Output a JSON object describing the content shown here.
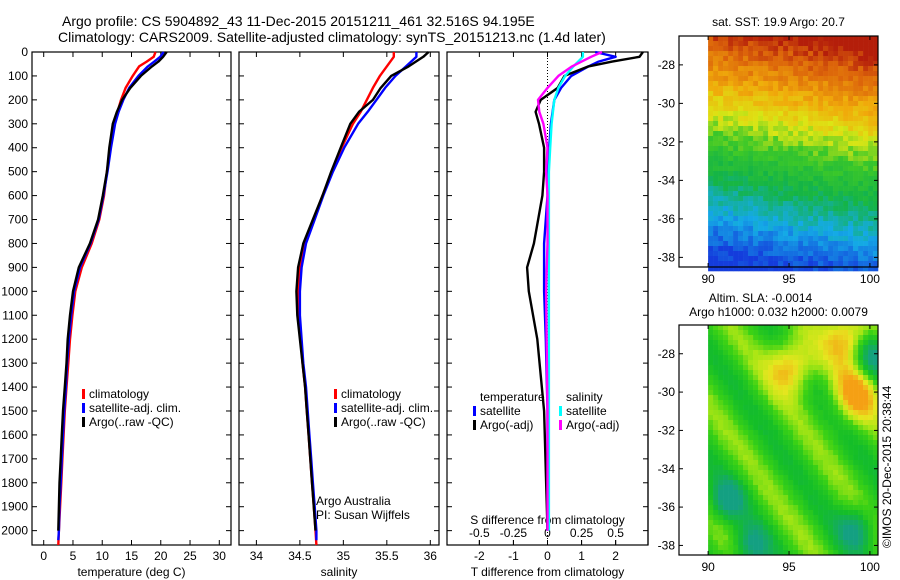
{
  "header": {
    "line1": "Argo profile: CS 5904892_43 11-Dec-2015 20151211_461 32.516S 94.195E",
    "line2": "Climatology: CARS2009. Satellite-adjusted climatology: synTS_20151213.nc (1.4d later)"
  },
  "credit": {
    "institution": "Argo Australia",
    "pi": "PI: Susan Wijffels",
    "stamp": "©IMOS 20-Dec-2015 20:38:44"
  },
  "chart_data": [
    {
      "id": "temperature-profile",
      "type": "line",
      "xlabel": "temperature (deg C)",
      "ylabel": "",
      "xlim": [
        -2,
        32
      ],
      "ylim": [
        2060,
        0
      ],
      "xticks": [
        0,
        5,
        10,
        15,
        20,
        25,
        30
      ],
      "yticks": [
        0,
        100,
        200,
        300,
        400,
        500,
        600,
        700,
        800,
        900,
        1000,
        1100,
        1200,
        1300,
        1400,
        1500,
        1600,
        1700,
        1800,
        1900,
        2000
      ],
      "legend": [
        "climatology",
        "satellite-adj. clim.",
        "Argo(..raw -QC)"
      ],
      "legend_position": "lower-middle",
      "series": [
        {
          "name": "climatology",
          "color": "#ff0000",
          "depth": [
            0,
            20,
            40,
            60,
            100,
            150,
            200,
            250,
            300,
            400,
            500,
            600,
            700,
            800,
            900,
            1000,
            1100,
            1200,
            1300,
            1400,
            1500,
            1600,
            1700,
            1800,
            1900,
            2000,
            2060
          ],
          "values": [
            19.1,
            18.8,
            17.6,
            16.3,
            15.2,
            14.0,
            13.2,
            12.6,
            12.0,
            11.4,
            10.8,
            10.3,
            9.5,
            8.2,
            6.5,
            5.4,
            4.9,
            4.5,
            4.2,
            3.9,
            3.6,
            3.4,
            3.2,
            3.0,
            2.8,
            2.6,
            2.5
          ]
        },
        {
          "name": "satellite-adj. clim.",
          "color": "#0000ff",
          "depth": [
            0,
            20,
            40,
            60,
            100,
            150,
            200,
            250,
            300,
            400,
            500,
            600,
            700,
            800,
            900,
            1000,
            1100,
            1200,
            1300,
            1400,
            1500,
            1600,
            1700,
            1800,
            1900,
            2000,
            2040
          ],
          "values": [
            20.5,
            19.9,
            18.9,
            17.8,
            16.2,
            14.6,
            13.6,
            12.8,
            12.2,
            11.5,
            10.9,
            10.2,
            9.4,
            8.0,
            6.2,
            5.2,
            4.7,
            4.3,
            4.0,
            3.8,
            3.5,
            3.3,
            3.1,
            2.9,
            2.7,
            2.6,
            2.5
          ]
        },
        {
          "name": "Argo(..raw -QC)",
          "color": "#000000",
          "depth": [
            0,
            20,
            40,
            60,
            100,
            150,
            200,
            250,
            300,
            400,
            500,
            600,
            700,
            800,
            900,
            1000,
            1100,
            1200,
            1300,
            1400,
            1500,
            1600,
            1700,
            1800,
            1900,
            2000
          ],
          "values": [
            21.0,
            20.4,
            19.6,
            18.5,
            16.6,
            14.8,
            13.4,
            12.5,
            11.8,
            11.2,
            10.8,
            10.1,
            9.3,
            7.9,
            6.0,
            5.0,
            4.5,
            4.1,
            3.9,
            3.6,
            3.3,
            3.1,
            2.9,
            2.7,
            2.6,
            2.5
          ]
        }
      ]
    },
    {
      "id": "salinity-profile",
      "type": "line",
      "xlabel": "salinity",
      "xlim": [
        33.8,
        36.1
      ],
      "ylim": [
        2060,
        0
      ],
      "xticks": [
        34,
        34.5,
        35,
        35.5,
        36
      ],
      "legend": [
        "climatology",
        "satellite-adj. clim.",
        "Argo(..raw -QC)"
      ],
      "legend_position": "lower-right",
      "series": [
        {
          "name": "climatology",
          "color": "#ff0000",
          "depth": [
            0,
            20,
            60,
            100,
            150,
            200,
            250,
            300,
            400,
            500,
            600,
            700,
            800,
            900,
            1000,
            1100,
            1200,
            1300,
            1400,
            1500,
            1600,
            1700,
            1800,
            1900,
            2000,
            2060
          ],
          "values": [
            35.58,
            35.58,
            35.5,
            35.42,
            35.34,
            35.27,
            35.2,
            35.11,
            34.98,
            34.87,
            34.76,
            34.66,
            34.56,
            34.5,
            34.48,
            34.49,
            34.51,
            34.53,
            34.56,
            34.58,
            34.6,
            34.62,
            34.64,
            34.66,
            34.68,
            34.69
          ]
        },
        {
          "name": "satellite-adj. clim.",
          "color": "#0000ff",
          "depth": [
            0,
            20,
            60,
            100,
            150,
            200,
            250,
            300,
            400,
            500,
            600,
            700,
            800,
            900,
            1000,
            1100,
            1200,
            1300,
            1400,
            1500,
            1600,
            1700,
            1800,
            1900,
            2000,
            2040
          ],
          "values": [
            35.84,
            35.84,
            35.72,
            35.6,
            35.48,
            35.38,
            35.28,
            35.17,
            35.01,
            34.88,
            34.77,
            34.67,
            34.57,
            34.52,
            34.5,
            34.5,
            34.52,
            34.54,
            34.57,
            34.59,
            34.61,
            34.63,
            34.65,
            34.67,
            34.69,
            34.69
          ]
        },
        {
          "name": "Argo(..raw -QC)",
          "color": "#000000",
          "depth": [
            0,
            20,
            60,
            100,
            150,
            200,
            250,
            300,
            400,
            500,
            600,
            700,
            800,
            900,
            1000,
            1100,
            1200,
            1300,
            1400,
            1500,
            1600,
            1700,
            1800,
            1900,
            2000
          ],
          "values": [
            35.98,
            35.92,
            35.75,
            35.55,
            35.43,
            35.34,
            35.18,
            35.08,
            34.97,
            34.86,
            34.76,
            34.65,
            34.54,
            34.48,
            34.46,
            34.47,
            34.5,
            34.53,
            34.56,
            34.58,
            34.6,
            34.62,
            34.64,
            34.66,
            34.68
          ]
        }
      ]
    },
    {
      "id": "difference-profile",
      "type": "line",
      "xlabel": "T difference from climatology",
      "xlabel_secondary": "S difference from climatology",
      "xlim": [
        -2.95,
        2.95
      ],
      "xlim_secondary": [
        -0.7375,
        0.7375
      ],
      "ylim": [
        2060,
        0
      ],
      "xticks": [
        -2,
        -1,
        0,
        1,
        2
      ],
      "xticks_secondary": [
        -0.5,
        -0.25,
        0,
        0.25,
        0.5
      ],
      "legend_groups": [
        {
          "title": "temperature",
          "entries": [
            "satellite",
            "Argo(-adj)"
          ]
        },
        {
          "title": "salinity",
          "entries": [
            "satellite",
            "Argo(-adj)"
          ]
        }
      ],
      "legend_position": "lower-middle",
      "series": [
        {
          "name": "temperature satellite",
          "axis": "T",
          "color": "#0000ff",
          "depth": [
            0,
            20,
            40,
            60,
            100,
            150,
            200,
            300,
            400,
            500,
            600,
            800,
            1000,
            1200,
            1500,
            2000
          ],
          "values": [
            1.4,
            2.0,
            1.5,
            1.2,
            0.7,
            0.4,
            0.2,
            0.1,
            0.05,
            0.0,
            0.0,
            -0.1,
            -0.1,
            -0.05,
            0.0,
            0.0
          ]
        },
        {
          "name": "temperature Argo(-adj)",
          "axis": "T",
          "color": "#000000",
          "depth": [
            0,
            20,
            40,
            60,
            100,
            150,
            200,
            250,
            300,
            400,
            500,
            600,
            800,
            900,
            1000,
            1200,
            1500,
            2000
          ],
          "values": [
            2.8,
            2.7,
            1.9,
            1.2,
            0.5,
            0.3,
            -0.2,
            -0.35,
            -0.25,
            -0.1,
            -0.1,
            -0.15,
            -0.4,
            -0.6,
            -0.55,
            -0.3,
            -0.1,
            0.0
          ]
        },
        {
          "name": "salinity satellite",
          "axis": "S",
          "color": "#00ffff",
          "depth": [
            0,
            20,
            60,
            100,
            150,
            200,
            300,
            400,
            500,
            600,
            800,
            1000,
            1500,
            2000
          ],
          "values": [
            0.26,
            0.26,
            0.19,
            0.13,
            0.08,
            0.05,
            0.03,
            0.02,
            0.01,
            0.01,
            0.01,
            0.01,
            0.01,
            0.01
          ]
        },
        {
          "name": "salinity Argo(-adj)",
          "axis": "S",
          "color": "#ff00ff",
          "depth": [
            0,
            20,
            40,
            60,
            100,
            150,
            200,
            250,
            300,
            400,
            500,
            600,
            800,
            1000,
            1500,
            2000
          ],
          "values": [
            0.4,
            0.32,
            0.25,
            0.18,
            0.08,
            0.0,
            -0.07,
            -0.06,
            -0.03,
            0.0,
            -0.01,
            0.0,
            0.0,
            -0.01,
            0.0,
            0.0
          ]
        }
      ]
    },
    {
      "id": "sst-map",
      "type": "heatmap",
      "title": "sat. SST: 19.9 Argo: 20.7",
      "xlim": [
        88.2,
        100.5
      ],
      "ylim": [
        -38.5,
        -26.5
      ],
      "xticks": [
        90,
        95,
        100
      ],
      "yticks": [
        -28,
        -30,
        -32,
        -34,
        -36,
        -38
      ],
      "data_xrange": [
        90,
        100.5
      ],
      "description": "warm (red/orange) in north, grading through yellow and green to blue in south"
    },
    {
      "id": "sla-map",
      "type": "heatmap",
      "title_line1": "Altim. SLA: -0.0014",
      "title_line2": "Argo h1000: 0.032 h2000: 0.0079",
      "xlim": [
        88.2,
        100.5
      ],
      "ylim": [
        -38.5,
        -26.5
      ],
      "xticks": [
        90,
        95,
        100
      ],
      "yticks": [
        -28,
        -30,
        -32,
        -34,
        -36,
        -38
      ],
      "data_xrange": [
        90,
        100.5
      ],
      "highs": [
        {
          "lon": 95,
          "lat": -28.5
        },
        {
          "lon": 99,
          "lat": -30
        },
        {
          "lon": 98.5,
          "lat": -27
        }
      ],
      "lows": [
        {
          "lon": 91,
          "lat": -35.5
        },
        {
          "lon": 92.5,
          "lat": -38
        },
        {
          "lon": 99,
          "lat": -37
        },
        {
          "lon": 100,
          "lat": -28
        }
      ]
    }
  ]
}
